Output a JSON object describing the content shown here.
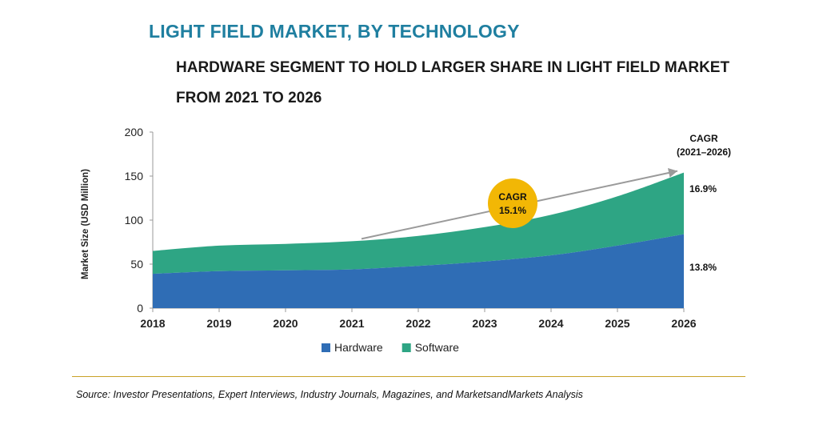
{
  "header": {
    "title": "LIGHT FIELD MARKET, BY TECHNOLOGY",
    "subtitle": "HARDWARE SEGMENT TO HOLD LARGER SHARE IN LIGHT FIELD MARKET FROM 2021 TO 2026"
  },
  "chart_data": {
    "type": "area",
    "stacked": true,
    "x": [
      "2018",
      "2019",
      "2020",
      "2021",
      "2022",
      "2023",
      "2024",
      "2025",
      "2026"
    ],
    "series": [
      {
        "name": "Hardware",
        "color": "#2f6db5",
        "values": [
          39,
          42,
          43,
          44,
          48,
          53,
          60,
          71,
          84
        ]
      },
      {
        "name": "Software",
        "color": "#2ea584",
        "values": [
          26,
          29,
          30,
          32,
          34,
          39,
          46,
          56,
          70
        ]
      }
    ],
    "ylabel": "Market Size (USD Million)",
    "xlabel": "",
    "ylim": [
      0,
      200
    ],
    "yticks": [
      0,
      50,
      100,
      150,
      200
    ],
    "legend_position": "bottom",
    "annotations": {
      "cagr_header": [
        "CAGR",
        "(2021–2026)"
      ],
      "software_cagr": "16.9%",
      "hardware_cagr": "13.8%",
      "bubble": [
        "CAGR",
        "15.1%"
      ],
      "bubble_color": "#f2b705",
      "arrow_from_year": "2021",
      "arrow_to_year": "2026"
    }
  },
  "footer": {
    "source": "Source: Investor Presentations, Expert Interviews, Industry Journals, Magazines, and MarketsandMarkets Analysis"
  }
}
